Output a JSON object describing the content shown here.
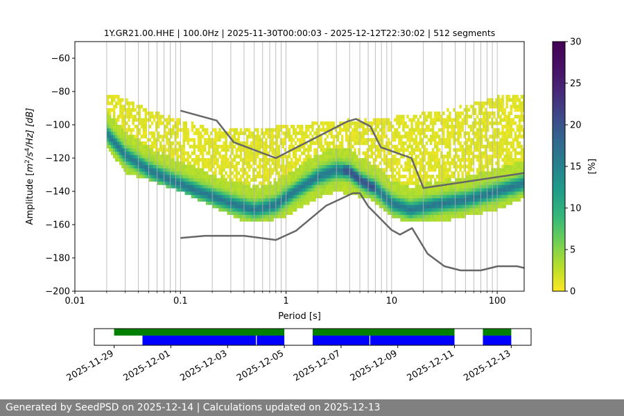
{
  "chart_data": [
    {
      "type": "heatmap",
      "title": "1Y.GR21.00.HHE | 100.0Hz | 2025-11-30T00:00:03 - 2025-12-12T22:30:02 | 512 segments",
      "xlabel": "Period [s]",
      "ylabel": "Amplitude [m²/s⁴/Hz] [dB]",
      "ylabel_parts": {
        "pre": "Amplitude [",
        "m": "m",
        "sup2": "2",
        "mid": "/s",
        "sup4": "4",
        "post": "/Hz] [dB]"
      },
      "xscale": "log",
      "xlim": [
        0.01,
        180
      ],
      "ylim": [
        -200,
        -50
      ],
      "xticks": [
        {
          "value": 0.01,
          "label": "0.01"
        },
        {
          "value": 0.1,
          "label": "0.1"
        },
        {
          "value": 1,
          "label": "1"
        },
        {
          "value": 10,
          "label": "10"
        },
        {
          "value": 100,
          "label": "100"
        }
      ],
      "yticks": [
        {
          "value": -60,
          "label": "−60"
        },
        {
          "value": -80,
          "label": "−80"
        },
        {
          "value": -100,
          "label": "−100"
        },
        {
          "value": -120,
          "label": "−120"
        },
        {
          "value": -140,
          "label": "−140"
        },
        {
          "value": -160,
          "label": "−160"
        },
        {
          "value": -180,
          "label": "−180"
        },
        {
          "value": -200,
          "label": "−200"
        }
      ],
      "colorbar": {
        "label": "[%]",
        "range": [
          0,
          30
        ],
        "ticks": [
          {
            "value": 0,
            "label": "0"
          },
          {
            "value": 5,
            "label": "5"
          },
          {
            "value": 10,
            "label": "10"
          },
          {
            "value": 15,
            "label": "15"
          },
          {
            "value": 20,
            "label": "20"
          },
          {
            "value": 25,
            "label": "25"
          },
          {
            "value": 30,
            "label": "30"
          }
        ],
        "colormap": "viridis_r"
      },
      "density": {
        "period_range": [
          0.02,
          180
        ],
        "mode_curve": [
          [
            0.02,
            -105
          ],
          [
            0.03,
            -118
          ],
          [
            0.05,
            -127
          ],
          [
            0.08,
            -133
          ],
          [
            0.15,
            -140
          ],
          [
            0.3,
            -147
          ],
          [
            0.5,
            -151
          ],
          [
            0.8,
            -148
          ],
          [
            1.2,
            -140
          ],
          [
            2,
            -131
          ],
          [
            3,
            -127
          ],
          [
            4,
            -128
          ],
          [
            5,
            -133
          ],
          [
            6,
            -136
          ],
          [
            7,
            -138
          ],
          [
            10,
            -147
          ],
          [
            15,
            -151
          ],
          [
            25,
            -148
          ],
          [
            50,
            -145
          ],
          [
            100,
            -140
          ],
          [
            180,
            -135
          ]
        ],
        "lower_edge": [
          [
            0.02,
            -112
          ],
          [
            0.03,
            -128
          ],
          [
            0.05,
            -132
          ],
          [
            0.1,
            -139
          ],
          [
            0.2,
            -148
          ],
          [
            0.4,
            -157
          ],
          [
            0.6,
            -158
          ],
          [
            1,
            -154
          ],
          [
            2,
            -143
          ],
          [
            3,
            -139
          ],
          [
            4,
            -141
          ],
          [
            6,
            -143
          ],
          [
            10,
            -154
          ],
          [
            15,
            -158
          ],
          [
            30,
            -157
          ],
          [
            60,
            -153
          ],
          [
            100,
            -150
          ],
          [
            180,
            -143
          ]
        ],
        "upper_edge": [
          [
            0.02,
            -82
          ],
          [
            0.03,
            -85
          ],
          [
            0.05,
            -92
          ],
          [
            0.1,
            -98
          ],
          [
            0.2,
            -103
          ],
          [
            0.5,
            -104
          ],
          [
            1,
            -101
          ],
          [
            3,
            -99
          ],
          [
            5,
            -97
          ],
          [
            8,
            -97
          ],
          [
            15,
            -95
          ],
          [
            30,
            -92
          ],
          [
            60,
            -88
          ],
          [
            100,
            -84
          ],
          [
            180,
            -83
          ]
        ]
      },
      "noise_models": [
        {
          "name": "upper",
          "points": [
            [
              0.1,
              -91.5
            ],
            [
              0.22,
              -97.4
            ],
            [
              0.32,
              -110.5
            ],
            [
              0.8,
              -120
            ],
            [
              3.8,
              -98
            ],
            [
              4.6,
              -96.5
            ],
            [
              6.3,
              -101
            ],
            [
              7.9,
              -113.5
            ],
            [
              15.4,
              -120
            ],
            [
              20,
              -138
            ],
            [
              180,
              -129
            ]
          ]
        },
        {
          "name": "lower",
          "points": [
            [
              0.1,
              -168
            ],
            [
              0.17,
              -166.7
            ],
            [
              0.4,
              -166.7
            ],
            [
              0.8,
              -169.2
            ],
            [
              1.24,
              -163.7
            ],
            [
              2.4,
              -148.6
            ],
            [
              4.3,
              -141.1
            ],
            [
              5,
              -141.1
            ],
            [
              6,
              -149
            ],
            [
              10,
              -163.2
            ],
            [
              12,
              -166
            ],
            [
              15.6,
              -162.1
            ],
            [
              21.9,
              -177.5
            ],
            [
              31.6,
              -185
            ],
            [
              45,
              -187.5
            ],
            [
              70,
              -187.5
            ],
            [
              101,
              -185
            ],
            [
              154,
              -185
            ],
            [
              180,
              -186
            ]
          ]
        }
      ]
    },
    {
      "type": "timeline",
      "xaxis_dates": [
        "2025-11-29",
        "2025-12-01",
        "2025-12-03",
        "2025-12-05",
        "2025-12-07",
        "2025-12-09",
        "2025-12-11",
        "2025-12-13"
      ],
      "xaxis_day_offsets": [
        0,
        2,
        4,
        6,
        8,
        10,
        12,
        14
      ],
      "xlim_day_offsets": [
        -0.7,
        14.7
      ],
      "green_spans": [
        [
          0,
          6
        ],
        [
          7,
          12
        ],
        [
          13,
          14
        ]
      ],
      "blue_spans": [
        [
          1,
          5
        ],
        [
          5.03,
          6
        ],
        [
          7,
          9
        ],
        [
          9.03,
          12
        ],
        [
          13,
          14
        ]
      ]
    }
  ],
  "colors": {
    "noise_model_line": "#666666",
    "grid": "#b0b0b0",
    "green_span": "#008000",
    "blue_span": "#0000ff",
    "footer_bg": "#808080"
  },
  "footer": {
    "text": "Generated by SeedPSD on 2025-12-14 | Calculations updated on 2025-12-13"
  }
}
